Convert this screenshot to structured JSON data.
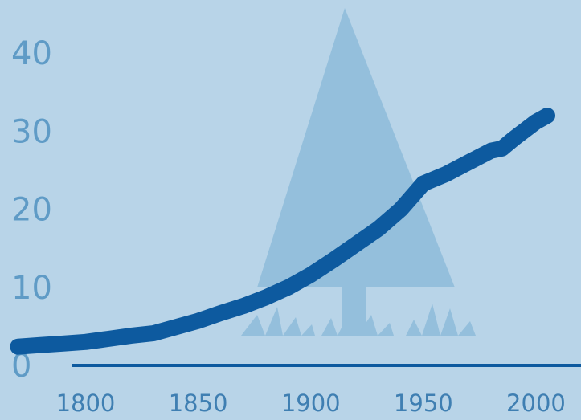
{
  "chart_data": {
    "type": "line",
    "title": "",
    "xlabel": "",
    "ylabel": "",
    "xlim": [
      1762,
      2020
    ],
    "ylim": [
      0,
      45
    ],
    "grid": false,
    "legend": "none",
    "y_ticks": [
      "0",
      "10",
      "20",
      "30",
      "40"
    ],
    "x_ticks": [
      "1800",
      "1850",
      "1900",
      "1950",
      "2000"
    ],
    "series": [
      {
        "x": [
          1770,
          1780,
          1790,
          1800,
          1810,
          1820,
          1830,
          1840,
          1850,
          1860,
          1870,
          1880,
          1890,
          1900,
          1910,
          1920,
          1930,
          1940,
          1950,
          1960,
          1970,
          1980,
          1985,
          1990,
          2000,
          2005
        ],
        "values": [
          2.4,
          2.6,
          2.8,
          3.0,
          3.4,
          3.8,
          4.1,
          4.9,
          5.7,
          6.7,
          7.6,
          8.7,
          10.0,
          11.6,
          13.5,
          15.5,
          17.5,
          20.0,
          23.3,
          24.5,
          26.0,
          27.5,
          27.8,
          29.0,
          31.2,
          32.0
        ],
        "color": "#0d5a9f"
      }
    ],
    "axis_color": "#0d5a9f",
    "decoration_color": "#94bfdc"
  }
}
